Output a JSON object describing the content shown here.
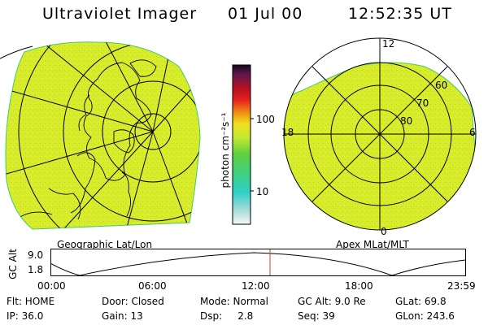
{
  "header": {
    "instrument": "Ultraviolet Imager",
    "date": "01 Jul 00",
    "time": "12:52:35 UT"
  },
  "map_left": {
    "label": "Geographic Lat/Lon"
  },
  "map_right": {
    "label": "Apex MLat/MLT",
    "mlt_labels": [
      "12",
      "18",
      "6",
      "0"
    ],
    "lat_labels": [
      "60",
      "70",
      "80"
    ]
  },
  "colorbar": {
    "unit": "photon cm⁻²s⁻¹",
    "ticks": [
      "100",
      "10"
    ]
  },
  "timeline": {
    "ylabel": "GC Alt",
    "ytick_high": "9.0",
    "ytick_low": "1.8",
    "xticks": [
      "00:00",
      "06:00",
      "12:00",
      "18:00",
      "23:59"
    ]
  },
  "info": {
    "row1": [
      "Flt: HOME",
      "Door: Closed",
      "Mode: Normal",
      "GC Alt: 9.0 Re",
      "GLat:  69.8"
    ],
    "row2": [
      "IP: 36.0",
      "Gain: 13",
      "Dsp:     2.8",
      "Seq: 39",
      "GLon: 243.6"
    ]
  },
  "colors": {
    "image_fill": "#d8ec2c",
    "speckle": "#a8d820",
    "cursor": "#c84020"
  }
}
